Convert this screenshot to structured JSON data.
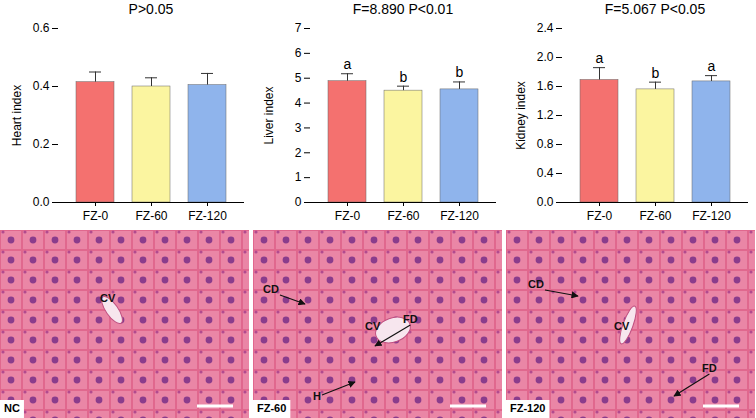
{
  "chart_data": [
    {
      "type": "bar",
      "title": "P>0.05",
      "y_label": "Heart index",
      "categories": [
        "FZ-0",
        "FZ-60",
        "FZ-120"
      ],
      "values": [
        0.415,
        0.4,
        0.405
      ],
      "errors": [
        0.035,
        0.03,
        0.04
      ],
      "colors": [
        "#f4716f",
        "#fbf5a0",
        "#8fb4ec"
      ],
      "ylim": [
        0,
        0.6
      ],
      "yticks": [
        {
          "value": 0,
          "label": "0.0"
        },
        {
          "value": 0.2,
          "label": "0.2"
        },
        {
          "value": 0.4,
          "label": "0.4"
        },
        {
          "value": 0.6,
          "label": "0.6"
        }
      ]
    },
    {
      "type": "bar",
      "title": "F=8.890  P<0.01",
      "y_label": "Liver index",
      "categories": [
        "FZ-0",
        "FZ-60",
        "FZ-120"
      ],
      "values": [
        4.88,
        4.5,
        4.55
      ],
      "errors": [
        0.3,
        0.18,
        0.3
      ],
      "significance_letters": [
        "a",
        "b",
        "b"
      ],
      "colors": [
        "#f4716f",
        "#fbf5a0",
        "#8fb4ec"
      ],
      "ylim": [
        0,
        7
      ],
      "yticks": [
        0,
        1,
        2,
        3,
        4,
        5,
        6,
        7
      ]
    },
    {
      "type": "bar",
      "title": "F=5.067  P<0.05",
      "y_label": "Kidney index",
      "categories": [
        "FZ-0",
        "FZ-60",
        "FZ-120"
      ],
      "values": [
        1.69,
        1.56,
        1.67
      ],
      "errors": [
        0.17,
        0.1,
        0.08
      ],
      "significance_letters": [
        "a",
        "b",
        "a"
      ],
      "colors": [
        "#f4716f",
        "#fbf5a0",
        "#8fb4ec"
      ],
      "ylim": [
        0,
        2.4
      ],
      "yticks": [
        {
          "value": 0,
          "label": "0.0"
        },
        {
          "value": 0.4,
          "label": "0.4"
        },
        {
          "value": 0.8,
          "label": "0.8"
        },
        {
          "value": 1.2,
          "label": "1.2"
        },
        {
          "value": 1.6,
          "label": "1.6"
        },
        {
          "value": 2.0,
          "label": "2.0"
        },
        {
          "value": 2.4,
          "label": "2.4"
        }
      ]
    }
  ],
  "micrographs": [
    {
      "label": "NC",
      "annotations": [
        "CV"
      ]
    },
    {
      "label": "FZ-60",
      "annotations": [
        "CD",
        "FD",
        "CV",
        "H"
      ]
    },
    {
      "label": "FZ-120",
      "annotations": [
        "CD",
        "CV",
        "FD"
      ]
    }
  ]
}
